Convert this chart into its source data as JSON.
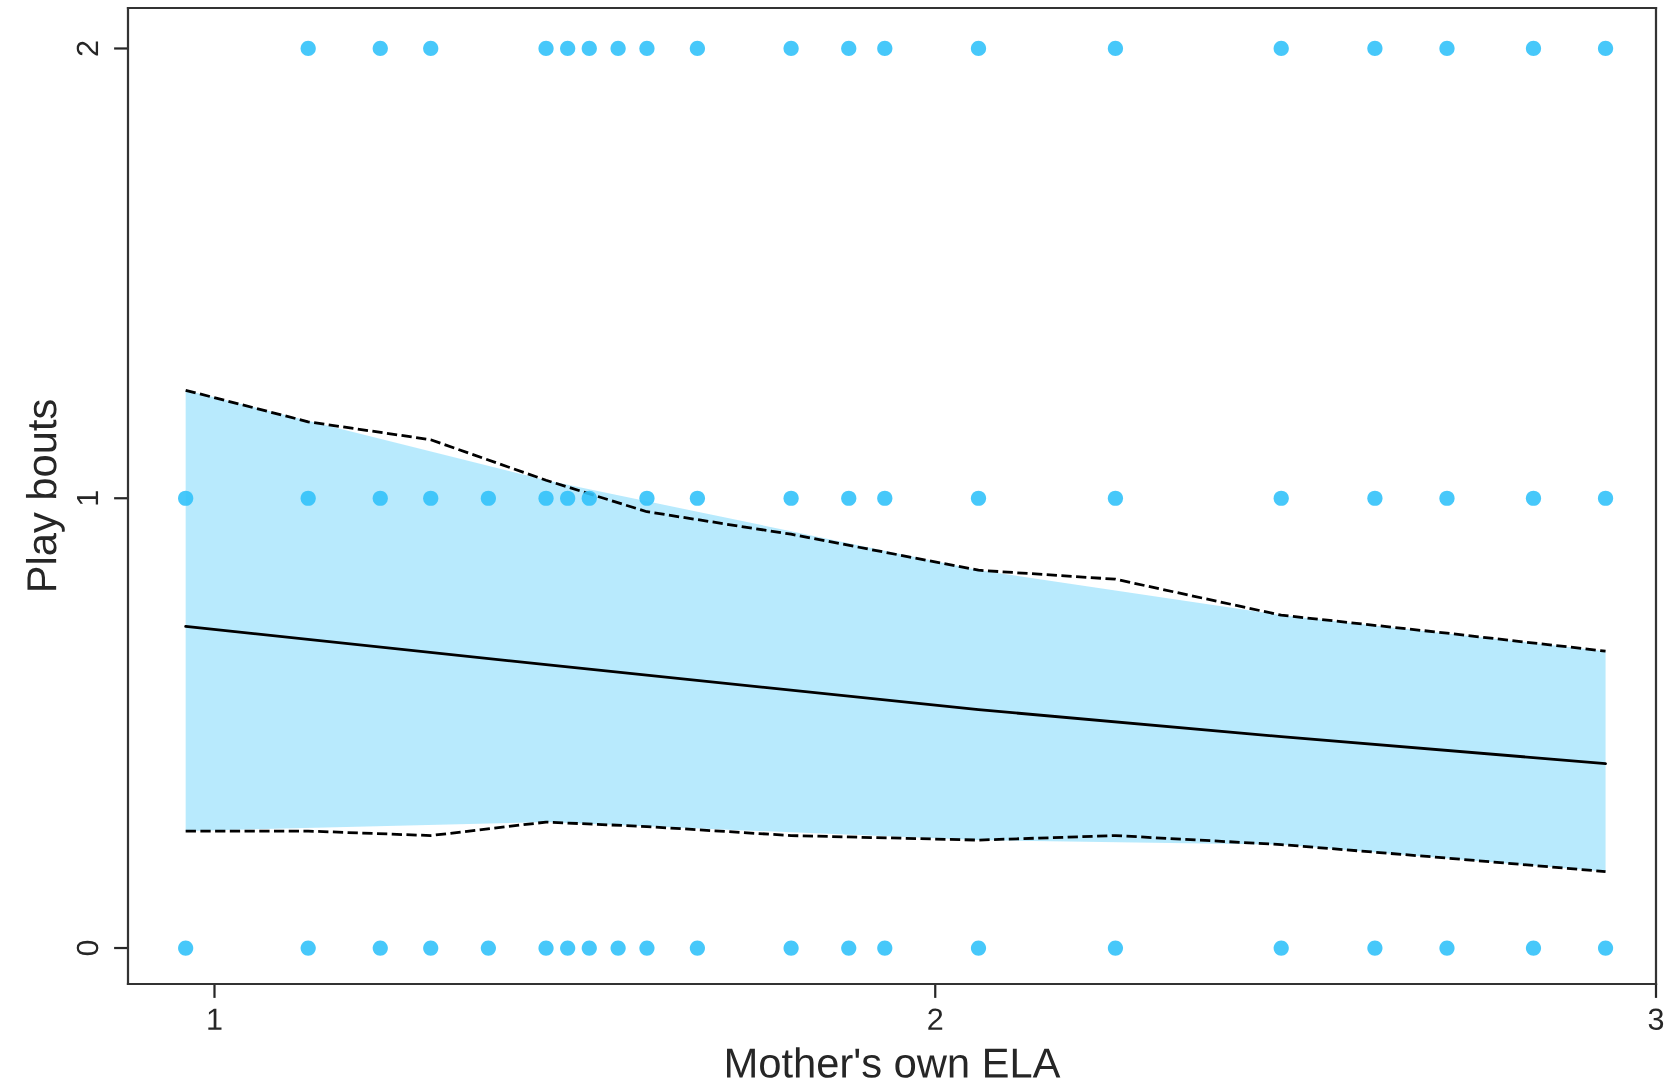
{
  "chart_data": {
    "type": "scatter",
    "xlabel": "Mother's own ELA",
    "ylabel": "Play bouts",
    "xlim": [
      0.88,
      3.0
    ],
    "ylim": [
      -0.08,
      2.09
    ],
    "xticks": [
      1,
      2,
      3
    ],
    "yticks": [
      0,
      1,
      2
    ],
    "grid": false,
    "marker": "circle",
    "series": [
      {
        "color": "#33c2fa",
        "x": [
          0.96,
          1.13,
          1.23,
          1.3,
          1.38,
          1.46,
          1.49,
          1.52,
          1.56,
          1.6,
          1.67,
          1.8,
          1.88,
          1.93,
          2.06,
          2.25,
          2.48,
          2.61,
          2.71,
          2.83,
          2.93
        ],
        "values": [
          0,
          0,
          0,
          0,
          0,
          0,
          0,
          0,
          0,
          0,
          0,
          0,
          0,
          0,
          0,
          0,
          0,
          0,
          0,
          0,
          0
        ]
      },
      {
        "color": "#33c2fa",
        "x": [
          0.96,
          1.13,
          1.23,
          1.3,
          1.38,
          1.46,
          1.49,
          1.52,
          1.6,
          1.67,
          1.8,
          1.88,
          1.93,
          2.06,
          2.25,
          2.48,
          2.61,
          2.71,
          2.83,
          2.93
        ],
        "values": [
          1,
          1,
          1,
          1,
          1,
          1,
          1,
          1,
          1,
          1,
          1,
          1,
          1,
          1,
          1,
          1,
          1,
          1,
          1,
          1
        ]
      },
      {
        "color": "#33c2fa",
        "x": [
          1.13,
          1.23,
          1.3,
          1.46,
          1.49,
          1.52,
          1.56,
          1.6,
          1.67,
          1.8,
          1.88,
          1.93,
          2.06,
          2.25,
          2.48,
          2.61,
          2.71,
          2.83,
          2.93
        ],
        "values": [
          2,
          2,
          2,
          2,
          2,
          2,
          2,
          2,
          2,
          2,
          2,
          2,
          2,
          2,
          2,
          2,
          2,
          2,
          2
        ]
      },
      {
        "type": "line",
        "color": "#000000",
        "line_style": "solid",
        "marker": "none",
        "x": [
          0.96,
          1.46,
          2.06,
          2.48,
          2.93
        ],
        "values": [
          0.715,
          0.63,
          0.53,
          0.47,
          0.41
        ],
        "lower": [
          0.26,
          0.28,
          0.24,
          0.23,
          0.17
        ],
        "upper": [
          1.24,
          1.04,
          0.84,
          0.74,
          0.66
        ]
      },
      {
        "type": "line",
        "color": "#000000",
        "line_style": "dashed",
        "marker": "none",
        "x": [
          0.96,
          1.13,
          1.3,
          1.46,
          1.6,
          1.8,
          2.06,
          2.25,
          2.48,
          2.71,
          2.93
        ],
        "values": [
          1.24,
          1.17,
          1.13,
          1.04,
          0.97,
          0.92,
          0.84,
          0.82,
          0.74,
          0.7,
          0.66
        ]
      },
      {
        "type": "line",
        "color": "#000000",
        "line_style": "dashed",
        "marker": "none",
        "x": [
          0.96,
          1.13,
          1.3,
          1.46,
          1.6,
          1.8,
          2.06,
          2.25,
          2.48,
          2.71,
          2.93
        ],
        "values": [
          0.26,
          0.26,
          0.25,
          0.28,
          0.27,
          0.25,
          0.24,
          0.25,
          0.23,
          0.2,
          0.17
        ]
      }
    ]
  }
}
